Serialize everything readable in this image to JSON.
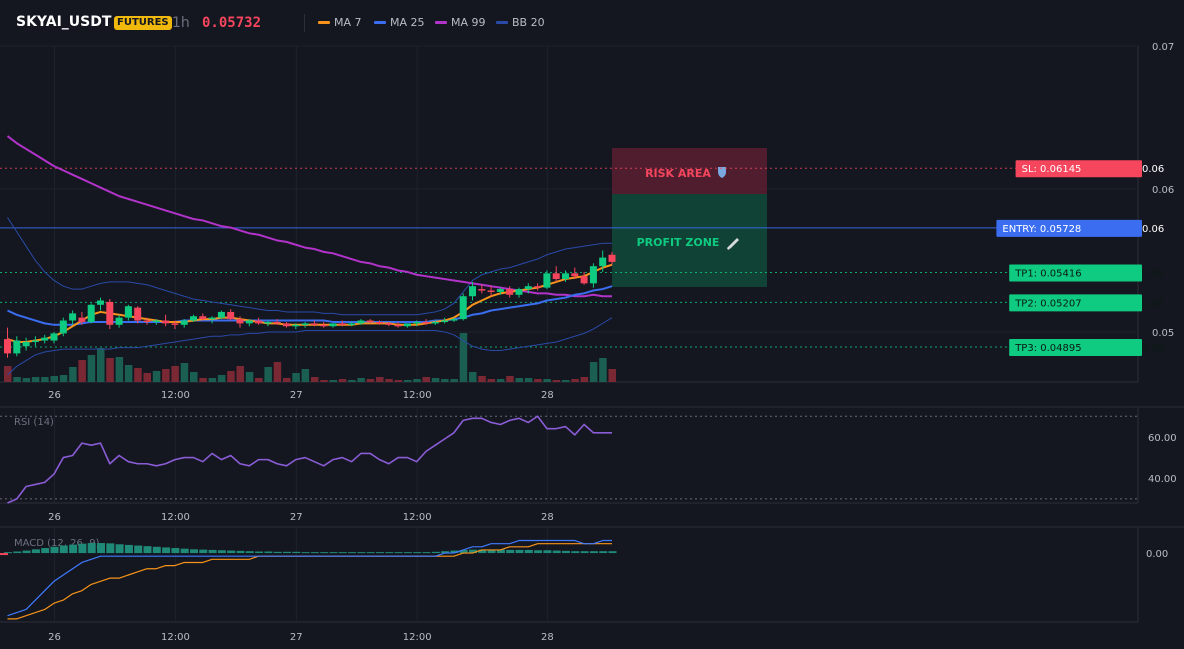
{
  "header": {
    "symbol": "SKYAI_USDT",
    "badge": "FUTURES",
    "timeframe": "1h",
    "price": "0.05732",
    "legend": [
      {
        "label": "MA 7",
        "color": "#f7931a"
      },
      {
        "label": "MA 25",
        "color": "#3a6df0"
      },
      {
        "label": "MA 99",
        "color": "#b233c9"
      },
      {
        "label": "BB 20",
        "color": "#2a4aa8"
      }
    ]
  },
  "colors": {
    "up": "#0ecb81",
    "down": "#f6465d",
    "ma7": "#f7931a",
    "ma25": "#3a6df0",
    "ma99": "#b233c9",
    "bb": "#2a4aa8",
    "rsi": "#8a5cd6",
    "macd": "#3f7bff",
    "signal": "#f7931a",
    "hist": "#1f8a78"
  },
  "chart_data": [
    {
      "type": "candlestick",
      "title": "SKYAI_USDT",
      "x_ticks": [
        "26",
        "12:00",
        "27",
        "12:00",
        "28"
      ],
      "y_ticks": [
        "0.07",
        "0.06",
        "0.05"
      ],
      "ylim": [
        0.0465,
        0.07
      ],
      "candles": [
        [
          0.0495,
          0.0503,
          0.0482,
          0.0485
        ],
        [
          0.0485,
          0.0497,
          0.0483,
          0.0494
        ],
        [
          0.049,
          0.0496,
          0.0487,
          0.0493
        ],
        [
          0.0493,
          0.0497,
          0.049,
          0.0494
        ],
        [
          0.0494,
          0.0498,
          0.0492,
          0.0496
        ],
        [
          0.0494,
          0.05,
          0.0492,
          0.0499
        ],
        [
          0.0499,
          0.051,
          0.0497,
          0.0508
        ],
        [
          0.0508,
          0.0515,
          0.0505,
          0.0513
        ],
        [
          0.051,
          0.0514,
          0.0505,
          0.0507
        ],
        [
          0.0507,
          0.052,
          0.0506,
          0.0519
        ],
        [
          0.0519,
          0.0524,
          0.0515,
          0.0522
        ],
        [
          0.0521,
          0.0523,
          0.0502,
          0.0505
        ],
        [
          0.0505,
          0.0512,
          0.0503,
          0.051
        ],
        [
          0.051,
          0.0519,
          0.0508,
          0.0518
        ],
        [
          0.0517,
          0.0518,
          0.0506,
          0.0508
        ],
        [
          0.0508,
          0.051,
          0.0505,
          0.0507
        ],
        [
          0.0507,
          0.0509,
          0.0505,
          0.0508
        ],
        [
          0.0508,
          0.0512,
          0.0504,
          0.0506
        ],
        [
          0.0506,
          0.0508,
          0.0502,
          0.0505
        ],
        [
          0.0505,
          0.0509,
          0.0503,
          0.0508
        ],
        [
          0.0508,
          0.0512,
          0.0507,
          0.0511
        ],
        [
          0.0511,
          0.0513,
          0.0508,
          0.0509
        ],
        [
          0.0509,
          0.0511,
          0.0506,
          0.051
        ],
        [
          0.051,
          0.0515,
          0.0509,
          0.0514
        ],
        [
          0.0514,
          0.0516,
          0.0508,
          0.0509
        ],
        [
          0.0509,
          0.0511,
          0.0503,
          0.0506
        ],
        [
          0.0506,
          0.0509,
          0.0504,
          0.0508
        ],
        [
          0.0508,
          0.051,
          0.0505,
          0.0506
        ],
        [
          0.0506,
          0.0508,
          0.0504,
          0.0507
        ],
        [
          0.0507,
          0.0509,
          0.0505,
          0.0506
        ],
        [
          0.0506,
          0.0507,
          0.0503,
          0.0504
        ],
        [
          0.0504,
          0.0506,
          0.0502,
          0.0505
        ],
        [
          0.0505,
          0.0507,
          0.0503,
          0.0506
        ],
        [
          0.0506,
          0.0508,
          0.0504,
          0.0505
        ],
        [
          0.0505,
          0.0507,
          0.0503,
          0.0504
        ],
        [
          0.0504,
          0.0506,
          0.0503,
          0.0506
        ],
        [
          0.0506,
          0.0508,
          0.0504,
          0.0505
        ],
        [
          0.0505,
          0.0507,
          0.0504,
          0.0506
        ],
        [
          0.0506,
          0.0509,
          0.0505,
          0.0508
        ],
        [
          0.0508,
          0.0509,
          0.0506,
          0.0507
        ],
        [
          0.0507,
          0.0508,
          0.0505,
          0.0506
        ],
        [
          0.0506,
          0.0507,
          0.0504,
          0.0505
        ],
        [
          0.0505,
          0.0507,
          0.0503,
          0.0504
        ],
        [
          0.0504,
          0.0506,
          0.0503,
          0.0506
        ],
        [
          0.0506,
          0.0508,
          0.0504,
          0.0507
        ],
        [
          0.0507,
          0.0509,
          0.0505,
          0.0506
        ],
        [
          0.0506,
          0.0508,
          0.0505,
          0.0507
        ],
        [
          0.0507,
          0.051,
          0.0506,
          0.0508
        ],
        [
          0.0508,
          0.051,
          0.0507,
          0.0509
        ],
        [
          0.0509,
          0.0527,
          0.0508,
          0.0525
        ],
        [
          0.0525,
          0.0535,
          0.0522,
          0.0532
        ],
        [
          0.053,
          0.0533,
          0.0527,
          0.0529
        ],
        [
          0.0529,
          0.0532,
          0.0525,
          0.0528
        ],
        [
          0.0528,
          0.0531,
          0.0526,
          0.053
        ],
        [
          0.053,
          0.0532,
          0.0524,
          0.0526
        ],
        [
          0.0526,
          0.0531,
          0.0524,
          0.053
        ],
        [
          0.053,
          0.0534,
          0.0527,
          0.0532
        ],
        [
          0.0532,
          0.0534,
          0.0529,
          0.0531
        ],
        [
          0.0531,
          0.0543,
          0.053,
          0.0541
        ],
        [
          0.0541,
          0.0546,
          0.0535,
          0.0537
        ],
        [
          0.0537,
          0.0543,
          0.0535,
          0.0541
        ],
        [
          0.0541,
          0.0545,
          0.0537,
          0.0539
        ],
        [
          0.0539,
          0.0542,
          0.0533,
          0.0534
        ],
        [
          0.0534,
          0.0548,
          0.0531,
          0.0546
        ],
        [
          0.0546,
          0.0557,
          0.0542,
          0.0552
        ],
        [
          0.0554,
          0.0556,
          0.0547,
          0.0549
        ]
      ],
      "ma7": [
        0.0495,
        0.0493,
        0.0493,
        0.0494,
        0.0495,
        0.0497,
        0.05,
        0.0504,
        0.0508,
        0.0512,
        0.0514,
        0.0513,
        0.0512,
        0.0511,
        0.051,
        0.0509,
        0.0508,
        0.0507,
        0.0507,
        0.0507,
        0.0508,
        0.0509,
        0.0509,
        0.051,
        0.051,
        0.0509,
        0.0508,
        0.0507,
        0.0506,
        0.0506,
        0.0505,
        0.0505,
        0.0505,
        0.0505,
        0.0505,
        0.0505,
        0.0505,
        0.0505,
        0.0506,
        0.0506,
        0.0506,
        0.0506,
        0.0505,
        0.0505,
        0.0505,
        0.0506,
        0.0507,
        0.0508,
        0.051,
        0.0514,
        0.0519,
        0.0522,
        0.0525,
        0.0527,
        0.0528,
        0.0529,
        0.053,
        0.0531,
        0.0533,
        0.0535,
        0.0537,
        0.0538,
        0.0539,
        0.0542,
        0.0545,
        0.0547
      ],
      "ma25": [
        0.0515,
        0.0512,
        0.051,
        0.0508,
        0.0506,
        0.0505,
        0.0505,
        0.0505,
        0.0506,
        0.0507,
        0.0507,
        0.0507,
        0.0507,
        0.0507,
        0.0507,
        0.0507,
        0.0507,
        0.0507,
        0.0507,
        0.0508,
        0.0508,
        0.0508,
        0.0508,
        0.0508,
        0.0508,
        0.0508,
        0.0508,
        0.0508,
        0.0508,
        0.0508,
        0.0508,
        0.0508,
        0.0508,
        0.0508,
        0.0508,
        0.0507,
        0.0507,
        0.0507,
        0.0507,
        0.0507,
        0.0507,
        0.0507,
        0.0507,
        0.0507,
        0.0507,
        0.0507,
        0.0508,
        0.0508,
        0.0509,
        0.051,
        0.0512,
        0.0513,
        0.0515,
        0.0516,
        0.0517,
        0.0518,
        0.0519,
        0.052,
        0.0522,
        0.0523,
        0.0524,
        0.0526,
        0.0527,
        0.0529,
        0.053,
        0.0532
      ],
      "ma99": [
        0.0637,
        0.0632,
        0.0628,
        0.0624,
        0.062,
        0.0616,
        0.0613,
        0.061,
        0.0607,
        0.0604,
        0.0601,
        0.0598,
        0.0595,
        0.0593,
        0.0591,
        0.0589,
        0.0587,
        0.0585,
        0.0583,
        0.0581,
        0.0579,
        0.0578,
        0.0576,
        0.0574,
        0.0573,
        0.0571,
        0.0569,
        0.0568,
        0.0566,
        0.0564,
        0.0563,
        0.0561,
        0.0559,
        0.0558,
        0.0556,
        0.0555,
        0.0553,
        0.0551,
        0.0549,
        0.0548,
        0.0546,
        0.0545,
        0.0543,
        0.0542,
        0.054,
        0.0539,
        0.0538,
        0.0537,
        0.0536,
        0.0535,
        0.0534,
        0.0533,
        0.0532,
        0.0531,
        0.053,
        0.0529,
        0.0528,
        0.0527,
        0.0527,
        0.0526,
        0.0526,
        0.0525,
        0.0525,
        0.0526,
        0.0525,
        0.0525
      ],
      "bb_upper": [
        0.058,
        0.057,
        0.056,
        0.055,
        0.0542,
        0.0536,
        0.0532,
        0.053,
        0.053,
        0.0532,
        0.0534,
        0.0535,
        0.0535,
        0.0535,
        0.0534,
        0.0533,
        0.0531,
        0.0529,
        0.0527,
        0.0525,
        0.0523,
        0.0522,
        0.0521,
        0.052,
        0.0519,
        0.0518,
        0.0517,
        0.0516,
        0.0515,
        0.0515,
        0.0514,
        0.0514,
        0.0514,
        0.0514,
        0.0513,
        0.0513,
        0.0512,
        0.0512,
        0.0512,
        0.0512,
        0.0512,
        0.0512,
        0.0512,
        0.0512,
        0.0512,
        0.0513,
        0.0514,
        0.0516,
        0.052,
        0.0528,
        0.0536,
        0.054,
        0.0542,
        0.0544,
        0.0545,
        0.0547,
        0.0549,
        0.0551,
        0.0554,
        0.0556,
        0.0558,
        0.0559,
        0.056,
        0.0561,
        0.0562,
        0.0562
      ],
      "bb_lower": [
        0.047,
        0.0476,
        0.048,
        0.0484,
        0.0486,
        0.0487,
        0.0488,
        0.0488,
        0.0488,
        0.0488,
        0.0488,
        0.0488,
        0.0489,
        0.0489,
        0.0489,
        0.049,
        0.0491,
        0.0492,
        0.0493,
        0.0494,
        0.0495,
        0.0496,
        0.0497,
        0.0497,
        0.0498,
        0.0498,
        0.0499,
        0.0499,
        0.05,
        0.05,
        0.05,
        0.05,
        0.0501,
        0.0501,
        0.0501,
        0.0501,
        0.0501,
        0.0501,
        0.0501,
        0.0501,
        0.0501,
        0.0501,
        0.0501,
        0.0501,
        0.0501,
        0.0501,
        0.0501,
        0.05,
        0.0498,
        0.0494,
        0.049,
        0.0488,
        0.0487,
        0.0487,
        0.0488,
        0.0489,
        0.049,
        0.0491,
        0.0492,
        0.0493,
        0.0495,
        0.0497,
        0.0499,
        0.0502,
        0.0506,
        0.051
      ],
      "volume": [
        16,
        5,
        4,
        5,
        5,
        6,
        7,
        15,
        22,
        27,
        34,
        24,
        25,
        17,
        14,
        9,
        11,
        13,
        16,
        19,
        10,
        4,
        4,
        7,
        11,
        16,
        10,
        4,
        15,
        20,
        4,
        9,
        13,
        5,
        2,
        2,
        3,
        2,
        4,
        3,
        5,
        3,
        2,
        2,
        3,
        5,
        4,
        3,
        3,
        49,
        10,
        6,
        3,
        3,
        6,
        4,
        4,
        3,
        3,
        2,
        2,
        3,
        5,
        20,
        24,
        13
      ]
    },
    {
      "type": "line",
      "title": "RSI (14)",
      "y_ticks": [
        "60.00",
        "40.00"
      ],
      "ylim": [
        28,
        74
      ],
      "guides": [
        70,
        30
      ],
      "values": [
        28,
        30,
        36,
        37,
        38,
        42,
        50,
        51,
        57,
        56,
        57,
        47,
        51,
        48,
        47,
        47,
        46,
        47,
        49,
        50,
        50,
        48,
        52,
        49,
        51,
        47,
        46,
        49,
        49,
        47,
        46,
        49,
        50,
        48,
        46,
        49,
        50,
        48,
        52,
        52,
        49,
        47,
        50,
        50,
        48,
        53,
        56,
        59,
        62,
        68,
        69,
        69,
        67,
        66,
        68,
        69,
        67,
        70,
        64,
        64,
        65,
        61,
        66,
        62,
        62,
        62
      ]
    },
    {
      "type": "line",
      "title": "MACD (12, 26, 9)",
      "y_ticks": [
        "0.00"
      ],
      "ylim": [
        -0.0022,
        0.0008
      ],
      "macd": [
        -0.002,
        -0.0019,
        -0.0018,
        -0.0015,
        -0.0012,
        -0.0009,
        -0.0007,
        -0.0005,
        -0.0003,
        -0.0002,
        -0.0001,
        -0.0001,
        -0.0001,
        -0.0001,
        -0.0001,
        -0.0001,
        -0.0001,
        -0.0001,
        -0.0001,
        -0.0001,
        -0.0001,
        -0.0001,
        -0.0001,
        -0.0001,
        -0.0001,
        -0.0001,
        -0.0001,
        -0.0001,
        -0.0001,
        -0.0001,
        -0.0001,
        -0.0001,
        -0.0001,
        -0.0001,
        -0.0001,
        -0.0001,
        -0.0001,
        -0.0001,
        -0.0001,
        -0.0001,
        -0.0001,
        -0.0001,
        -0.0001,
        -0.0001,
        -0.0001,
        -0.0001,
        -0.0001,
        0.0,
        0.0,
        0.0001,
        0.0002,
        0.0002,
        0.0003,
        0.0003,
        0.0003,
        0.0004,
        0.0004,
        0.0004,
        0.0004,
        0.0004,
        0.0004,
        0.0004,
        0.0003,
        0.0003,
        0.0004,
        0.0004
      ],
      "signal": [
        -0.0021,
        -0.0021,
        -0.002,
        -0.0019,
        -0.0018,
        -0.0016,
        -0.0015,
        -0.0013,
        -0.0012,
        -0.001,
        -0.0009,
        -0.0008,
        -0.0008,
        -0.0007,
        -0.0006,
        -0.0005,
        -0.0005,
        -0.0004,
        -0.0004,
        -0.0003,
        -0.0003,
        -0.0003,
        -0.0002,
        -0.0002,
        -0.0002,
        -0.0002,
        -0.0002,
        -0.0001,
        -0.0001,
        -0.0001,
        -0.0001,
        -0.0001,
        -0.0001,
        -0.0001,
        -0.0001,
        -0.0001,
        -0.0001,
        -0.0001,
        -0.0001,
        -0.0001,
        -0.0001,
        -0.0001,
        -0.0001,
        -0.0001,
        -0.0001,
        -0.0001,
        -0.0001,
        -0.0001,
        -0.0001,
        0.0,
        0.0,
        0.0001,
        0.0001,
        0.0001,
        0.0002,
        0.0002,
        0.0002,
        0.0003,
        0.0003,
        0.0003,
        0.0003,
        0.0003,
        0.0003,
        0.0003,
        0.0003,
        0.0003
      ],
      "histogram": [
        3e-05,
        5e-05,
        8e-05,
        0.00012,
        0.00016,
        0.0002,
        0.00024,
        0.00027,
        0.0003,
        0.00032,
        0.00032,
        0.00031,
        0.00028,
        0.00026,
        0.00024,
        0.00022,
        0.0002,
        0.00018,
        0.00016,
        0.00014,
        0.00012,
        0.00011,
        0.0001,
        9e-05,
        8e-05,
        7e-05,
        6e-05,
        5e-05,
        5e-05,
        4e-05,
        4e-05,
        4e-05,
        3e-05,
        3e-05,
        3e-05,
        3e-05,
        3e-05,
        3e-05,
        3e-05,
        3e-05,
        3e-05,
        3e-05,
        3e-05,
        3e-05,
        3e-05,
        3e-05,
        4e-05,
        6e-05,
        8e-05,
        0.0001,
        0.00011,
        0.00011,
        0.00011,
        0.00011,
        0.0001,
        0.0001,
        0.0001,
        9e-05,
        9e-05,
        8e-05,
        7e-05,
        6e-05,
        6e-05,
        6e-05,
        6e-05,
        6e-05
      ]
    }
  ],
  "levels": {
    "sl": {
      "label": "SL: 0.06145",
      "axis": "0.06",
      "value": 0.06145,
      "color": "#f6465d"
    },
    "entry": {
      "label": "ENTRY: 0.05728",
      "axis": "0.06",
      "value": 0.05728,
      "color": "#3a6df0"
    },
    "tps": [
      {
        "label": "TP1: 0.05416",
        "axis": "0.05",
        "value": 0.05416,
        "color": "#0ecb81"
      },
      {
        "label": "TP2: 0.05207",
        "axis": "0.05",
        "value": 0.05207,
        "color": "#0ecb81"
      },
      {
        "label": "TP3: 0.04895",
        "axis": "0.05",
        "value": 0.04895,
        "color": "#0ecb81"
      }
    ]
  },
  "zones": {
    "risk_label": "RISK AREA",
    "profit_label": "PROFIT ZONE"
  }
}
